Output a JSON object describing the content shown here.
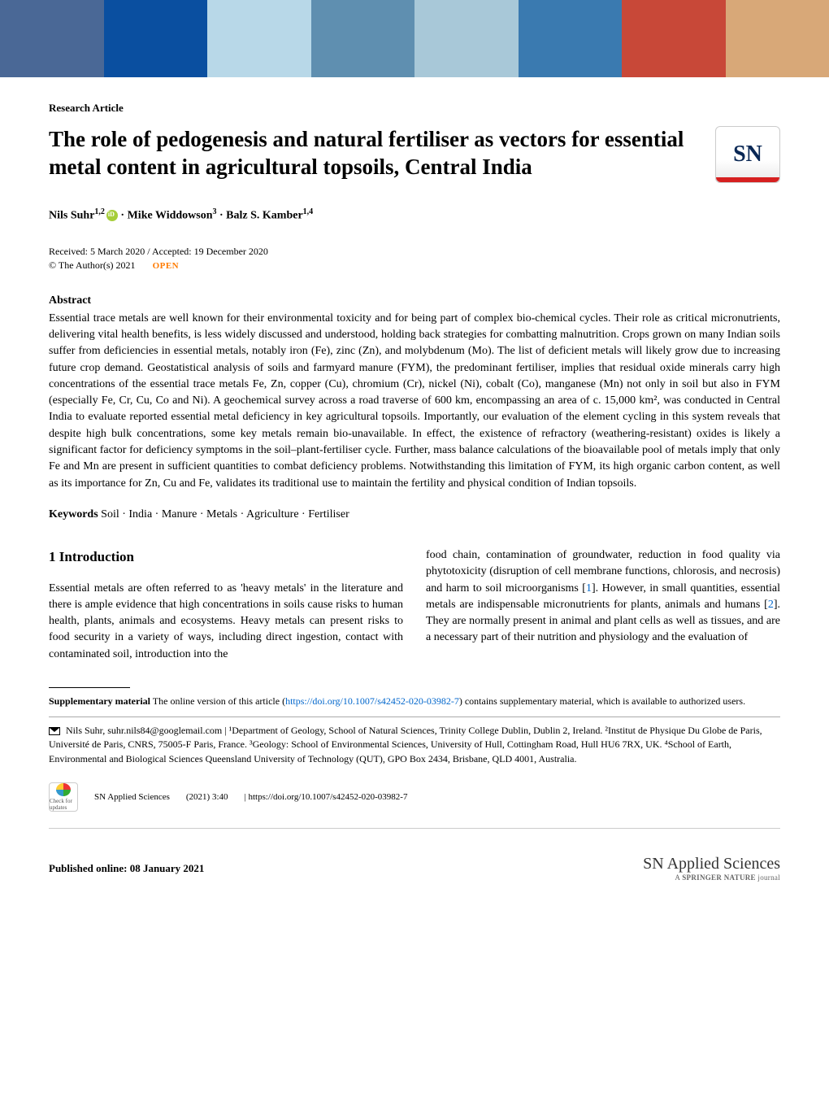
{
  "banner": {
    "colors": [
      "#4a6896",
      "#0a4fa0",
      "#b8d8e8",
      "#5f8fb0",
      "#a8c8d8",
      "#3a7ab0",
      "#c84838",
      "#d8a878"
    ]
  },
  "article_type": "Research Article",
  "title": "The role of pedogenesis and natural fertiliser as vectors for essential metal content in agricultural topsoils, Central India",
  "logo_text": "SN",
  "authors": {
    "a1_name": "Nils Suhr",
    "a1_aff": "1,2",
    "sep": " · ",
    "a2_name": "Mike Widdowson",
    "a2_aff": "3",
    "a3_name": "Balz S. Kamber",
    "a3_aff": "1,4"
  },
  "dates": "Received: 5 March 2020 / Accepted: 19 December 2020",
  "copyright": "© The Author(s) 2021",
  "open_label": "OPEN",
  "abstract_label": "Abstract",
  "abstract_text": "Essential trace metals are well known for their environmental toxicity and for being part of complex bio-chemical cycles. Their role as critical micronutrients, delivering vital health benefits, is less widely discussed and understood, holding back strategies for combatting malnutrition. Crops grown on many Indian soils suffer from deficiencies in essential metals, notably iron (Fe), zinc (Zn), and molybdenum (Mo). The list of deficient metals will likely grow due to increasing future crop demand. Geostatistical analysis of soils and farmyard manure (FYM), the predominant fertiliser, implies that residual oxide minerals carry high concentrations of the essential trace metals Fe, Zn, copper (Cu), chromium (Cr), nickel (Ni), cobalt (Co), manganese (Mn) not only in soil but also in FYM (especially Fe, Cr, Cu, Co and Ni). A geochemical survey across a road traverse of 600 km, encompassing an area of c. 15,000 km², was conducted in Central India to evaluate reported essential metal deficiency in key agricultural topsoils. Importantly, our evaluation of the element cycling in this system reveals that despite high bulk concentrations, some key metals remain bio-unavailable. In effect, the existence of refractory (weathering-resistant) oxides is likely a significant factor for deficiency symptoms in the soil–plant-fertiliser cycle. Further, mass balance calculations of the bioavailable pool of metals imply that only Fe and Mn are present in sufficient quantities to combat deficiency problems. Notwithstanding this limitation of FYM, its high organic carbon content, as well as its importance for Zn, Cu and Fe, validates its traditional use to maintain the fertility and physical condition of Indian topsoils.",
  "keywords_label": "Keywords",
  "keywords_text": "  Soil · India · Manure · Metals · Agriculture · Fertiliser",
  "intro_heading": "1  Introduction",
  "col1_text": "Essential metals are often referred to as 'heavy metals' in the literature and there is ample evidence that high concentrations in soils cause risks to human health, plants, animals and ecosystems. Heavy metals can present risks to food security in a variety of ways, including direct ingestion, contact with contaminated soil, introduction into the",
  "col2_p1": "food chain, contamination of groundwater, reduction in food quality via phytotoxicity (disruption of cell membrane functions, chlorosis, and necrosis) and harm to soil microorganisms [",
  "ref1": "1",
  "col2_p2": "]. However, in small quantities, essential metals are indispensable micronutrients for plants, animals and humans [",
  "ref2": "2",
  "col2_p3": "]. They are normally present in animal and plant cells as well as tissues, and are a necessary part of their nutrition and physiology and the evaluation of",
  "supp_label": "Supplementary material",
  "supp_p1": "  The online version of this article (",
  "supp_link": "https://doi.org/10.1007/s42452-020-03982-7",
  "supp_p2": ") contains supplementary material, which is available to authorized users.",
  "corr_text": "  Nils Suhr, suhr.nils84@googlemail.com | ¹Department of Geology, School of Natural Sciences, Trinity College Dublin, Dublin 2, Ireland. ²Institut de Physique Du Globe de Paris, Université de Paris, CNRS, 75005-F Paris, France. ³Geology: School of Environmental Sciences, University of Hull, Cottingham Road, Hull HU6 7RX, UK. ⁴School of Earth, Environmental and Biological Sciences Queensland University of Technology (QUT), GPO Box 2434, Brisbane, QLD 4001, Australia.",
  "crossmark_label": "Check for updates",
  "footer_journal": "SN Applied Sciences",
  "footer_issue": "(2021) 3:40",
  "footer_doi": "| https://doi.org/10.1007/s42452-020-03982-7",
  "pub_date": "Published online: 08 January 2021",
  "brand_name": "SN Applied Sciences",
  "brand_tag_a": "A ",
  "brand_tag_b": "SPRINGER NATURE",
  "brand_tag_c": " journal"
}
